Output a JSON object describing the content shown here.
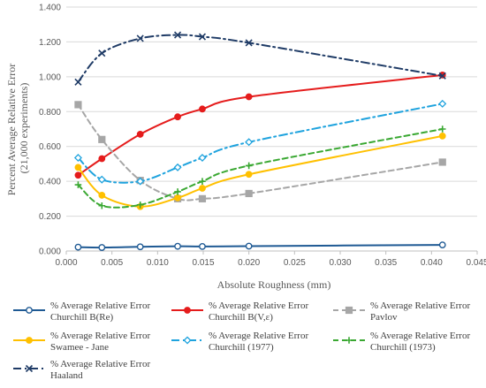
{
  "chart_data": {
    "type": "line",
    "title": "",
    "xlabel": "Absolute Roughness (mm)",
    "ylabel": [
      "Percent Average Relative Error",
      "(21,000 experiments)"
    ],
    "xlim": [
      0,
      0.045
    ],
    "ylim": [
      0,
      1.4
    ],
    "x_ticks": [
      "0.000",
      "0.005",
      "0.010",
      "0.015",
      "0.020",
      "0.025",
      "0.030",
      "0.035",
      "0.040",
      "0.045"
    ],
    "y_ticks": [
      "0.000",
      "0.200",
      "0.400",
      "0.600",
      "0.800",
      "1.000",
      "1.200",
      "1.400"
    ],
    "grid": true,
    "legend_position": "bottom",
    "series": [
      {
        "name": [
          "% Average Relative Error",
          "Churchill B(Re)"
        ],
        "color": "#1f5a94",
        "dash": "solid",
        "marker": "circle-open",
        "x": [
          0.0013,
          0.0039,
          0.0081,
          0.0122,
          0.0149,
          0.02,
          0.0412
        ],
        "y": [
          0.022,
          0.02,
          0.024,
          0.027,
          0.026,
          0.028,
          0.035
        ]
      },
      {
        "name": [
          "% Average Relative Error",
          "Churchill B(V,ε)"
        ],
        "color": "#e51c1c",
        "dash": "solid",
        "marker": "circle-filled",
        "x": [
          0.0013,
          0.0039,
          0.0081,
          0.0122,
          0.0149,
          0.02,
          0.0412
        ],
        "y": [
          0.435,
          0.53,
          0.67,
          0.77,
          0.815,
          0.885,
          1.01
        ]
      },
      {
        "name": [
          "% Average Relative Error",
          "Pavlov"
        ],
        "color": "#a6a6a6",
        "dash": "dashed",
        "marker": "square",
        "x": [
          0.0013,
          0.0039,
          0.0081,
          0.0122,
          0.0149,
          0.02,
          0.0412
        ],
        "y": [
          0.84,
          0.64,
          0.405,
          0.3,
          0.3,
          0.33,
          0.51
        ]
      },
      {
        "name": [
          "% Average Relative Error",
          "Swamee - Jane"
        ],
        "color": "#ffc000",
        "dash": "solid",
        "marker": "circle-filled",
        "x": [
          0.0013,
          0.0039,
          0.0081,
          0.0122,
          0.0149,
          0.02,
          0.0412
        ],
        "y": [
          0.48,
          0.32,
          0.255,
          0.305,
          0.36,
          0.44,
          0.66
        ]
      },
      {
        "name": [
          "% Average Relative Error",
          "Churchill (1977)"
        ],
        "color": "#1fa3de",
        "dash": "dashdot",
        "marker": "diamond-open",
        "x": [
          0.0013,
          0.0039,
          0.0081,
          0.0122,
          0.0149,
          0.02,
          0.0412
        ],
        "y": [
          0.535,
          0.41,
          0.4,
          0.48,
          0.535,
          0.625,
          0.845
        ]
      },
      {
        "name": [
          "% Average Relative Error",
          "Churchill (1973)"
        ],
        "color": "#3aa832",
        "dash": "dashed",
        "marker": "plus",
        "x": [
          0.0013,
          0.0039,
          0.0081,
          0.0122,
          0.0149,
          0.02,
          0.0412
        ],
        "y": [
          0.38,
          0.26,
          0.265,
          0.34,
          0.4,
          0.49,
          0.7
        ]
      },
      {
        "name": [
          "% Average Relative Error",
          "Haaland"
        ],
        "color": "#1f3b66",
        "dash": "dashdot",
        "marker": "x",
        "x": [
          0.0013,
          0.0039,
          0.0081,
          0.0122,
          0.0149,
          0.02,
          0.0412
        ],
        "y": [
          0.97,
          1.135,
          1.22,
          1.24,
          1.23,
          1.195,
          1.005
        ]
      }
    ]
  }
}
